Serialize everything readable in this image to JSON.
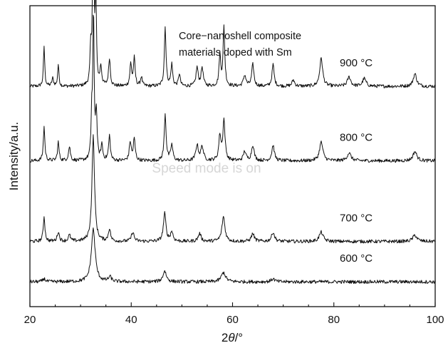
{
  "chart_data": {
    "type": "line",
    "xlabel_prefix": "2",
    "xlabel_theta": "θ",
    "xlabel_suffix": "/°",
    "ylabel": "Intensity/a.u.",
    "xlim": [
      20,
      100
    ],
    "xticks": [
      20,
      40,
      60,
      80,
      100
    ],
    "y_axis_ticks_labeled": false,
    "annotation": [
      "Core−nanoshell composite",
      "materials doped with Sm"
    ],
    "watermark": "Speed mode is on",
    "line_color": "#111111",
    "series": [
      {
        "name": "900 °C",
        "baseline": 7.1,
        "peaks": [
          [
            22.8,
            1.3,
            0.15
          ],
          [
            24.5,
            0.25,
            0.2
          ],
          [
            25.6,
            0.7,
            0.15
          ],
          [
            32.0,
            1.1,
            0.15
          ],
          [
            32.5,
            8.1,
            0.13
          ],
          [
            33.0,
            2.8,
            0.15
          ],
          [
            34.0,
            0.6,
            0.2
          ],
          [
            35.7,
            0.9,
            0.2
          ],
          [
            39.9,
            0.7,
            0.2
          ],
          [
            40.6,
            0.9,
            0.2
          ],
          [
            42.0,
            0.3,
            0.2
          ],
          [
            46.7,
            1.9,
            0.2
          ],
          [
            48.0,
            0.7,
            0.2
          ],
          [
            49.5,
            0.4,
            0.2
          ],
          [
            53.0,
            0.6,
            0.25
          ],
          [
            54.0,
            0.6,
            0.25
          ],
          [
            57.5,
            1.0,
            0.2
          ],
          [
            58.3,
            1.9,
            0.2
          ],
          [
            62.4,
            0.35,
            0.3
          ],
          [
            64.0,
            0.7,
            0.25
          ],
          [
            68.0,
            0.7,
            0.25
          ],
          [
            72.0,
            0.2,
            0.3
          ],
          [
            77.5,
            0.9,
            0.35
          ],
          [
            83.0,
            0.3,
            0.4
          ],
          [
            86.0,
            0.25,
            0.4
          ],
          [
            96.0,
            0.4,
            0.4
          ]
        ]
      },
      {
        "name": "800 °C",
        "baseline": 4.7,
        "peaks": [
          [
            22.8,
            1.1,
            0.18
          ],
          [
            25.6,
            0.6,
            0.18
          ],
          [
            27.8,
            0.45,
            0.22
          ],
          [
            32.2,
            1.4,
            0.15
          ],
          [
            32.55,
            4.7,
            0.15
          ],
          [
            33.1,
            1.5,
            0.18
          ],
          [
            34.2,
            0.5,
            0.2
          ],
          [
            35.7,
            0.8,
            0.2
          ],
          [
            39.8,
            0.6,
            0.22
          ],
          [
            40.6,
            0.7,
            0.22
          ],
          [
            46.7,
            1.5,
            0.22
          ],
          [
            48.0,
            0.5,
            0.25
          ],
          [
            53.0,
            0.5,
            0.3
          ],
          [
            54.0,
            0.45,
            0.3
          ],
          [
            57.5,
            0.8,
            0.25
          ],
          [
            58.3,
            1.3,
            0.25
          ],
          [
            62.4,
            0.3,
            0.3
          ],
          [
            64.0,
            0.5,
            0.3
          ],
          [
            68.0,
            0.5,
            0.3
          ],
          [
            77.5,
            0.6,
            0.4
          ],
          [
            83.0,
            0.25,
            0.45
          ],
          [
            96.0,
            0.3,
            0.45
          ]
        ]
      },
      {
        "name": "700 °C",
        "baseline": 2.1,
        "peaks": [
          [
            22.8,
            0.8,
            0.2
          ],
          [
            25.6,
            0.3,
            0.25
          ],
          [
            27.8,
            0.2,
            0.25
          ],
          [
            32.5,
            3.4,
            0.3
          ],
          [
            35.7,
            0.4,
            0.25
          ],
          [
            40.3,
            0.3,
            0.3
          ],
          [
            46.6,
            0.9,
            0.3
          ],
          [
            48.0,
            0.3,
            0.3
          ],
          [
            53.5,
            0.25,
            0.35
          ],
          [
            58.2,
            0.8,
            0.35
          ],
          [
            64.0,
            0.25,
            0.35
          ],
          [
            68.0,
            0.3,
            0.35
          ],
          [
            77.5,
            0.3,
            0.45
          ],
          [
            96.0,
            0.2,
            0.5
          ]
        ]
      },
      {
        "name": "600 °C",
        "baseline": 0.8,
        "peaks": [
          [
            22.8,
            0.1,
            0.3
          ],
          [
            32.5,
            1.7,
            0.45
          ],
          [
            35.8,
            0.15,
            0.35
          ],
          [
            46.6,
            0.35,
            0.4
          ],
          [
            58.2,
            0.3,
            0.5
          ],
          [
            68.0,
            0.1,
            0.4
          ]
        ]
      }
    ]
  }
}
